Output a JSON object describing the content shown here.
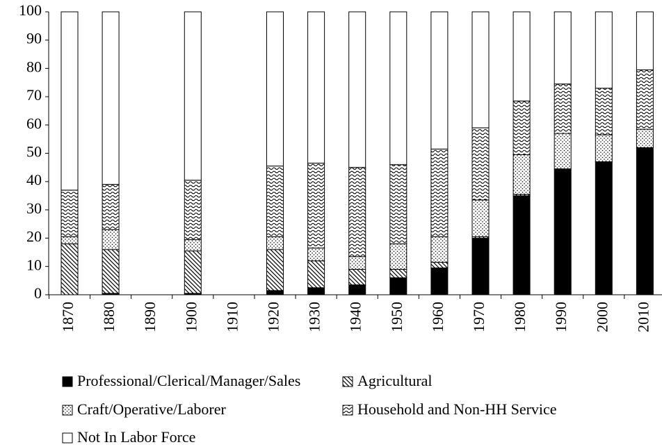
{
  "chart_data": {
    "type": "stacked_bar",
    "categories": [
      "1870",
      "1880",
      "1890",
      "1900",
      "1910",
      "1920",
      "1930",
      "1940",
      "1950",
      "1960",
      "1970",
      "1980",
      "1990",
      "2000",
      "2010"
    ],
    "series": [
      {
        "name": "Professional/Clerical/Manager/Sales",
        "color": "#000000",
        "pattern": "solid",
        "values": [
          0,
          0.5,
          null,
          0.5,
          null,
          1.5,
          2.5,
          3.5,
          6,
          9.5,
          20,
          35,
          44.5,
          47,
          52
        ]
      },
      {
        "name": "Agricultural",
        "color": "#000000",
        "pattern": "diagonal",
        "values": [
          18,
          15.5,
          null,
          15,
          null,
          14.5,
          9.5,
          5.5,
          3,
          2,
          0.5,
          0.5,
          0,
          0,
          0
        ]
      },
      {
        "name": "Craft/Operative/Laborer",
        "color": "#000000",
        "pattern": "dots",
        "values": [
          2.5,
          7,
          null,
          4,
          null,
          4.5,
          4.5,
          4.5,
          9,
          9,
          13,
          14,
          12.5,
          9.5,
          6.5
        ]
      },
      {
        "name": "Household and Non-HH Service",
        "color": "#000000",
        "pattern": "wave",
        "values": [
          16.5,
          16,
          null,
          21,
          null,
          25,
          30,
          31.5,
          28,
          31,
          25.5,
          19,
          17.5,
          16.5,
          21
        ]
      },
      {
        "name": "Not In Labor Force",
        "color": "#ffffff",
        "pattern": "solid",
        "values": [
          63,
          61,
          null,
          59.5,
          null,
          54.5,
          53.5,
          55,
          54,
          48.5,
          41,
          31.5,
          25.5,
          27,
          20.5
        ]
      }
    ],
    "ylim": [
      0,
      100
    ],
    "yticks": [
      0,
      10,
      20,
      30,
      40,
      50,
      60,
      70,
      80,
      90,
      100
    ],
    "grid": false
  }
}
